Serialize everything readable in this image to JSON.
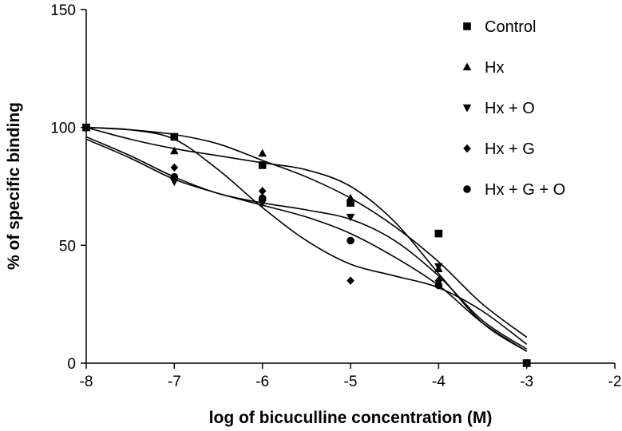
{
  "chart_data": {
    "type": "scatter",
    "title": "",
    "xlabel": "log of bicuculline concentration (M)",
    "ylabel": "% of specific binding",
    "xlim": [
      -8,
      -2
    ],
    "ylim": [
      0,
      150
    ],
    "xticks": [
      -8,
      -7,
      -6,
      -5,
      -4,
      -3,
      -2
    ],
    "yticks": [
      0,
      50,
      100,
      150
    ],
    "grid": false,
    "legend_position": "top-right",
    "marker_color": "#000000",
    "series": [
      {
        "name": "Control",
        "marker": "square",
        "points": [
          [
            -8,
            100
          ],
          [
            -7,
            96
          ],
          [
            -6,
            84
          ],
          [
            -5,
            68
          ],
          [
            -4,
            55
          ],
          [
            -3,
            0
          ]
        ],
        "curve": [
          [
            -8,
            100
          ],
          [
            -7.5,
            99
          ],
          [
            -7,
            97
          ],
          [
            -6.5,
            93
          ],
          [
            -6,
            86
          ],
          [
            -5.5,
            79
          ],
          [
            -5,
            70
          ],
          [
            -4.5,
            58
          ],
          [
            -4,
            43
          ],
          [
            -3.5,
            25
          ],
          [
            -3,
            11
          ]
        ]
      },
      {
        "name": "Hx",
        "marker": "triangle-up",
        "points": [
          [
            -8,
            100
          ],
          [
            -7,
            90
          ],
          [
            -6,
            89
          ],
          [
            -5,
            70
          ],
          [
            -4,
            40
          ],
          [
            -3,
            0
          ]
        ],
        "curve": [
          [
            -8,
            100
          ],
          [
            -7.5,
            95
          ],
          [
            -7,
            91
          ],
          [
            -6.5,
            88
          ],
          [
            -6,
            85
          ],
          [
            -5.5,
            82
          ],
          [
            -5,
            75
          ],
          [
            -4.5,
            60
          ],
          [
            -4,
            38
          ],
          [
            -3.5,
            17
          ],
          [
            -3,
            5
          ]
        ]
      },
      {
        "name": "Hx + O",
        "marker": "triangle-down",
        "points": [
          [
            -8,
            100
          ],
          [
            -7,
            77
          ],
          [
            -6,
            68
          ],
          [
            -5,
            62
          ],
          [
            -4,
            41
          ],
          [
            -3,
            0
          ]
        ],
        "curve": [
          [
            -8,
            96
          ],
          [
            -7.5,
            88
          ],
          [
            -7,
            79
          ],
          [
            -6.5,
            72
          ],
          [
            -6,
            68
          ],
          [
            -5.5,
            65
          ],
          [
            -5,
            61
          ],
          [
            -4.5,
            52
          ],
          [
            -4,
            37
          ],
          [
            -3.5,
            18
          ],
          [
            -3,
            6
          ]
        ]
      },
      {
        "name": "Hx + G",
        "marker": "diamond",
        "points": [
          [
            -8,
            100
          ],
          [
            -7,
            83
          ],
          [
            -6,
            73
          ],
          [
            -5,
            35
          ],
          [
            -4,
            35
          ],
          [
            -3,
            0
          ]
        ],
        "curve": [
          [
            -8,
            100
          ],
          [
            -7.5,
            99
          ],
          [
            -7,
            95
          ],
          [
            -6.5,
            82
          ],
          [
            -6,
            66
          ],
          [
            -5.5,
            52
          ],
          [
            -5,
            42
          ],
          [
            -4.5,
            37
          ],
          [
            -4,
            32
          ],
          [
            -3.5,
            22
          ],
          [
            -3,
            8
          ]
        ]
      },
      {
        "name": "Hx + G + O",
        "marker": "circle",
        "points": [
          [
            -8,
            100
          ],
          [
            -7,
            79
          ],
          [
            -6,
            70
          ],
          [
            -5,
            52
          ],
          [
            -4,
            33
          ],
          [
            -3,
            0
          ]
        ],
        "curve": [
          [
            -8,
            95
          ],
          [
            -7.5,
            87
          ],
          [
            -7,
            78
          ],
          [
            -6.5,
            72
          ],
          [
            -6,
            67
          ],
          [
            -5.5,
            62
          ],
          [
            -5,
            55
          ],
          [
            -4.5,
            45
          ],
          [
            -4,
            33
          ],
          [
            -3.5,
            17
          ],
          [
            -3,
            5
          ]
        ]
      }
    ]
  }
}
